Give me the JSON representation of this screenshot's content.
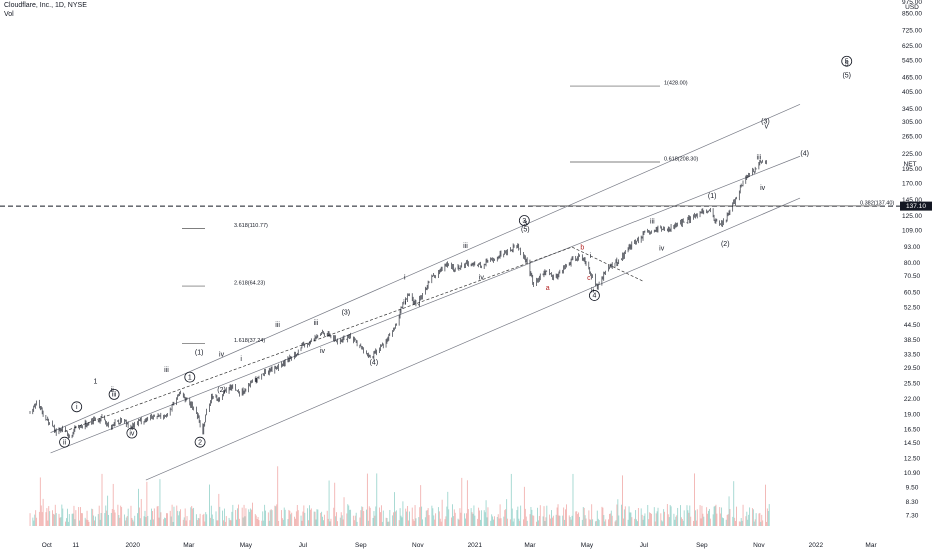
{
  "header": {
    "symbol_line": "Cloudflare, Inc., 1D, NYSE",
    "volume_label": "Vol"
  },
  "chart_data": {
    "type": "candlestick",
    "title": "Cloudflare, Inc., 1D, NYSE",
    "ticker_label": "NET",
    "y_scale": "log",
    "currency_label": "USD",
    "ylim": [
      6.6,
      950
    ],
    "y_ticks": [
      "850.00",
      "725.00",
      "625.00",
      "545.00",
      "465.00",
      "405.00",
      "345.00",
      "305.00",
      "265.00",
      "225.00",
      "195.00",
      "170.00",
      "145.00",
      "125.00",
      "109.00",
      "93.00",
      "80.00",
      "70.50",
      "60.50",
      "52.50",
      "44.50",
      "38.50",
      "33.50",
      "29.50",
      "25.50",
      "22.00",
      "19.00",
      "16.50",
      "14.50",
      "12.50",
      "10.90",
      "9.50",
      "8.30",
      "7.30"
    ],
    "top_tick_partial": "975.00",
    "x_ticks": [
      {
        "label": "Oct",
        "date": "2019-10-01"
      },
      {
        "label": "11",
        "date": "2019-11-01"
      },
      {
        "label": "2020",
        "date": "2020-01-01"
      },
      {
        "label": "Mar",
        "date": "2020-03-01"
      },
      {
        "label": "May",
        "date": "2020-05-01"
      },
      {
        "label": "Jul",
        "date": "2020-07-01"
      },
      {
        "label": "Sep",
        "date": "2020-09-01"
      },
      {
        "label": "Nov",
        "date": "2020-11-01"
      },
      {
        "label": "2021",
        "date": "2021-01-01"
      },
      {
        "label": "Mar",
        "date": "2021-03-01"
      },
      {
        "label": "May",
        "date": "2021-05-01"
      },
      {
        "label": "Jul",
        "date": "2021-07-01"
      },
      {
        "label": "Sep",
        "date": "2021-09-01"
      },
      {
        "label": "Nov",
        "date": "2021-11-01"
      },
      {
        "label": "2022",
        "date": "2022-01-01"
      },
      {
        "label": "Mar",
        "date": "2022-03-01"
      }
    ],
    "price_path": [
      [
        "2019-09-13",
        19.5
      ],
      [
        "2019-09-20",
        21.5
      ],
      [
        "2019-09-27",
        19.0
      ],
      [
        "2019-10-04",
        17.5
      ],
      [
        "2019-10-11",
        16.0
      ],
      [
        "2019-10-18",
        16.8
      ],
      [
        "2019-10-25",
        15.3
      ],
      [
        "2019-11-01",
        16.6
      ],
      [
        "2019-11-08",
        17.0
      ],
      [
        "2019-11-15",
        17.8
      ],
      [
        "2019-11-22",
        18.3
      ],
      [
        "2019-11-29",
        18.2
      ],
      [
        "2019-12-06",
        17.0
      ],
      [
        "2019-12-13",
        17.5
      ],
      [
        "2019-12-20",
        18.0
      ],
      [
        "2019-12-31",
        17.0
      ],
      [
        "2020-01-10",
        18.0
      ],
      [
        "2020-01-24",
        18.5
      ],
      [
        "2020-02-07",
        19.0
      ],
      [
        "2020-02-14",
        21.0
      ],
      [
        "2020-02-21",
        23.5
      ],
      [
        "2020-03-02",
        21.0
      ],
      [
        "2020-03-09",
        19.5
      ],
      [
        "2020-03-16",
        16.0
      ],
      [
        "2020-03-20",
        20.0
      ],
      [
        "2020-03-27",
        23.0
      ],
      [
        "2020-04-03",
        22.0
      ],
      [
        "2020-04-10",
        24.0
      ],
      [
        "2020-04-17",
        25.0
      ],
      [
        "2020-04-24",
        23.5
      ],
      [
        "2020-05-01",
        24.0
      ],
      [
        "2020-05-08",
        26.0
      ],
      [
        "2020-05-15",
        27.0
      ],
      [
        "2020-05-22",
        28.5
      ],
      [
        "2020-06-01",
        29.5
      ],
      [
        "2020-06-12",
        31.0
      ],
      [
        "2020-06-26",
        35.0
      ],
      [
        "2020-07-10",
        38.0
      ],
      [
        "2020-07-24",
        42.0
      ],
      [
        "2020-08-07",
        38.0
      ],
      [
        "2020-08-21",
        40.0
      ],
      [
        "2020-09-04",
        35.0
      ],
      [
        "2020-09-11",
        32.5
      ],
      [
        "2020-09-25",
        37.0
      ],
      [
        "2020-10-09",
        44.0
      ],
      [
        "2020-10-16",
        55.0
      ],
      [
        "2020-10-23",
        59.0
      ],
      [
        "2020-10-30",
        53.0
      ],
      [
        "2020-11-06",
        58.0
      ],
      [
        "2020-11-13",
        68.0
      ],
      [
        "2020-11-20",
        72.0
      ],
      [
        "2020-12-01",
        78.0
      ],
      [
        "2020-12-11",
        76.0
      ],
      [
        "2020-12-24",
        80.0
      ],
      [
        "2021-01-08",
        78.0
      ],
      [
        "2021-01-22",
        84.0
      ],
      [
        "2021-02-05",
        90.0
      ],
      [
        "2021-02-16",
        95.0
      ],
      [
        "2021-02-26",
        80.0
      ],
      [
        "2021-03-05",
        65.0
      ],
      [
        "2021-03-12",
        71.0
      ],
      [
        "2021-03-19",
        74.0
      ],
      [
        "2021-03-26",
        69.0
      ],
      [
        "2021-04-09",
        78.0
      ],
      [
        "2021-04-23",
        86.0
      ],
      [
        "2021-04-30",
        80.0
      ],
      [
        "2021-05-07",
        70.0
      ],
      [
        "2021-05-12",
        63.0
      ],
      [
        "2021-05-21",
        75.0
      ],
      [
        "2021-06-04",
        82.0
      ],
      [
        "2021-06-18",
        95.0
      ],
      [
        "2021-07-02",
        105.0
      ],
      [
        "2021-07-16",
        109.0
      ],
      [
        "2021-07-30",
        112.0
      ],
      [
        "2021-08-13",
        118.0
      ],
      [
        "2021-08-27",
        126.0
      ],
      [
        "2021-09-03",
        133.0
      ],
      [
        "2021-09-10",
        130.0
      ],
      [
        "2021-09-17",
        116.0
      ],
      [
        "2021-09-24",
        118.0
      ],
      [
        "2021-10-01",
        130.0
      ],
      [
        "2021-10-08",
        150.0
      ],
      [
        "2021-10-15",
        170.0
      ],
      [
        "2021-10-22",
        185.0
      ],
      [
        "2021-10-29",
        197.0
      ],
      [
        "2021-11-05",
        210.0
      ],
      [
        "2021-11-10",
        204.61
      ]
    ],
    "volume_note": "Volume histogram shown at bottom",
    "annotations": {
      "last_price": {
        "value": "204.61",
        "label": "NET"
      },
      "horizontal_line_price": {
        "value": "137.10"
      },
      "fib_levels": [
        {
          "text": "1(428.00)"
        },
        {
          "text": "0.618(208.30)"
        },
        {
          "text": "0.382(137.40)"
        },
        {
          "text": "3.618(110.77)"
        },
        {
          "text": "2.618(64.23)"
        },
        {
          "text": "1.618(37.24)"
        }
      ],
      "wave_labels_black": [
        "1",
        "ii",
        "iii",
        "iv",
        "i",
        "iii",
        "(1)",
        "(2)",
        "(3)",
        "(4)",
        "ii",
        "iii",
        "iv",
        "i",
        "ii",
        "iii",
        "iv",
        "3",
        "(5)",
        "i",
        "ii",
        "iii",
        "iv",
        "(1)",
        "(2)",
        "(3)",
        "iii",
        "iv",
        "(4)",
        "5",
        "(5)",
        "v"
      ],
      "wave_labels_red": [
        "a",
        "b",
        "c"
      ],
      "circled_labels": [
        "1",
        "2",
        "3",
        "4",
        "5",
        "i",
        "ii",
        "iii",
        "iv"
      ]
    },
    "grid": false,
    "legend": "none"
  },
  "colors": {
    "up": "#26a69a",
    "down": "#ef5350",
    "line": "#131722",
    "channel": "#787b86",
    "red_text": "#b22222"
  }
}
